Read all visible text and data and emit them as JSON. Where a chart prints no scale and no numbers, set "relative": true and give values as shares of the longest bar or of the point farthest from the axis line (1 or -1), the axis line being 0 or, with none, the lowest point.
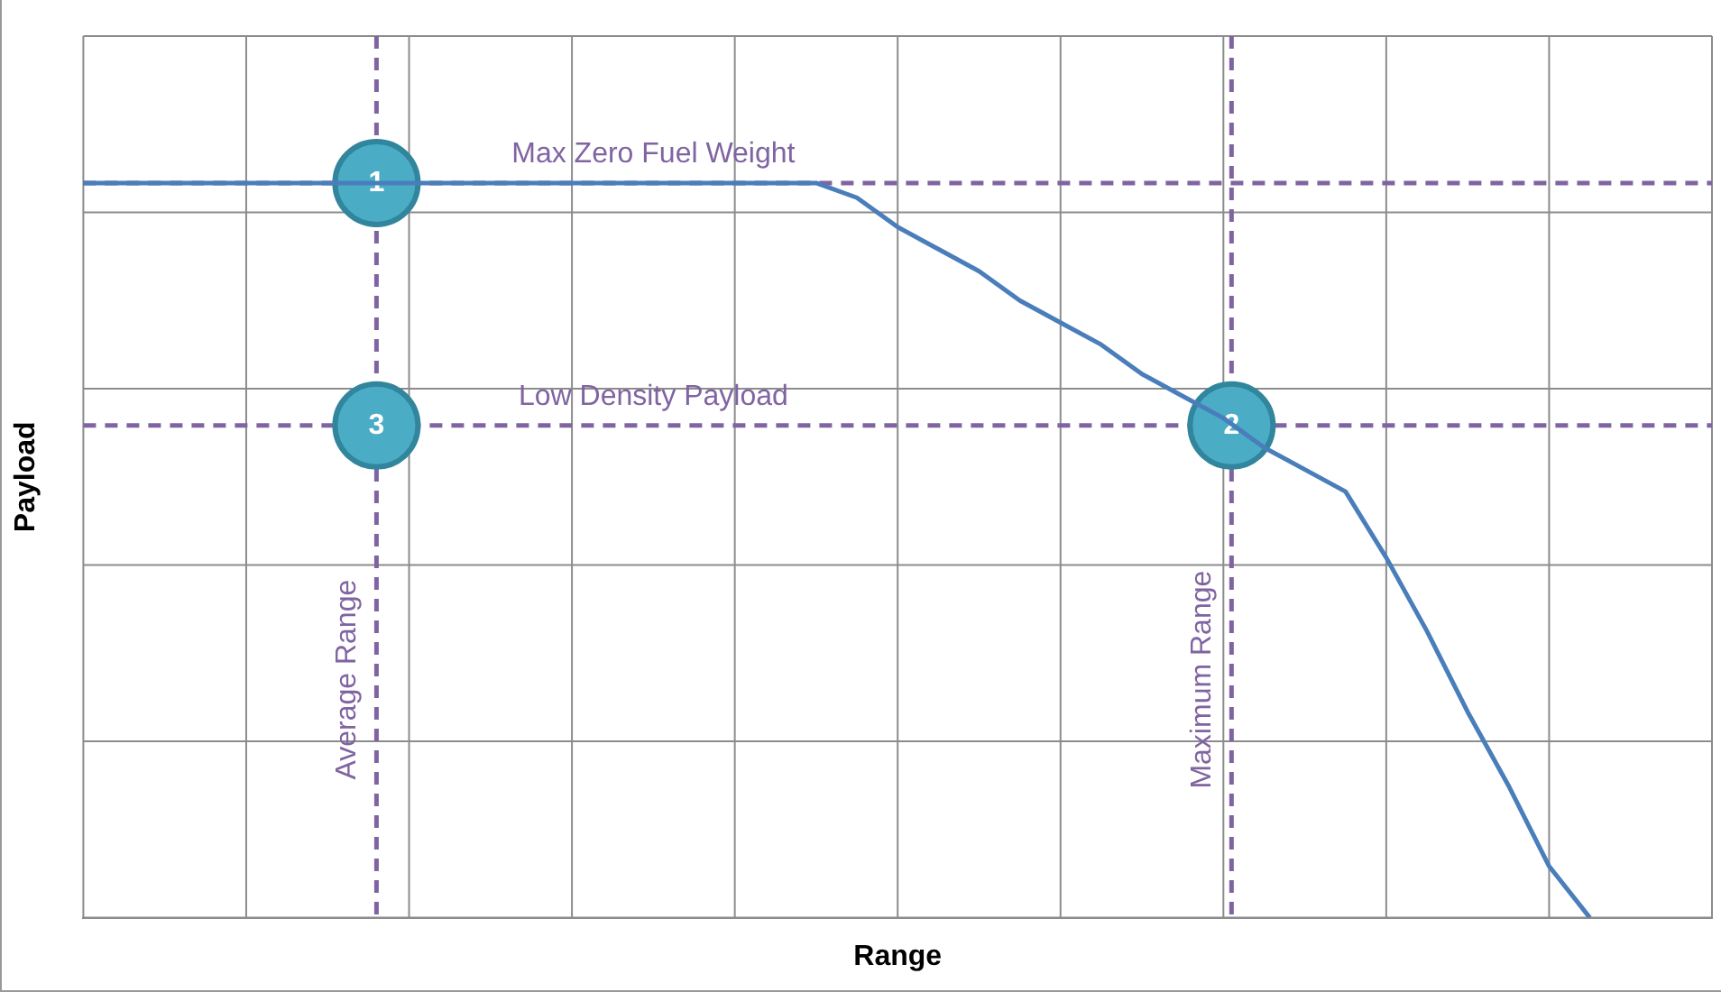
{
  "chart_data": {
    "type": "line",
    "relative": true,
    "xlabel": "Range",
    "ylabel": "Payload",
    "categories": [
      null,
      null,
      null,
      null,
      null,
      null,
      null,
      null,
      null,
      null,
      null,
      null,
      null,
      null,
      null,
      null,
      null,
      null,
      null,
      null,
      null,
      null,
      null,
      null,
      null,
      null,
      null,
      null,
      null,
      null,
      null,
      null,
      null,
      null,
      null,
      null,
      null,
      null,
      null,
      null,
      null
    ],
    "series": [
      {
        "color": "#4a7ebb",
        "values": [
          1,
          1,
          1,
          1,
          1,
          1,
          1,
          1,
          1,
          1,
          1,
          1,
          1,
          1,
          1,
          1,
          1,
          1,
          1,
          0.98,
          0.94,
          0.91,
          0.88,
          0.84,
          0.81,
          0.78,
          0.74,
          0.71,
          0.68,
          0.64,
          0.61,
          0.58,
          0.49,
          0.39,
          0.28,
          0.18,
          0.07,
          0,
          null,
          null,
          null
        ]
      }
    ],
    "ref_lines": [
      {
        "axis": "y",
        "value": 1,
        "label": "Max Zero Fuel Weight",
        "color": "#8064a2",
        "line_style": "dashed"
      },
      {
        "axis": "y",
        "value": 0.67,
        "label": "Low Density Payload",
        "color": "#8064a2",
        "line_style": "dashed"
      },
      {
        "axis": "x",
        "label": "Average Range",
        "color": "#8064a2",
        "line_style": "dashed"
      },
      {
        "axis": "x",
        "label": "Maximum Range",
        "color": "#8064a2",
        "line_style": "dashed"
      }
    ],
    "annotations": [
      {
        "text": "1",
        "y": 1
      },
      {
        "text": "3",
        "y": 0.67
      },
      {
        "text": "2",
        "y": 0.67
      }
    ],
    "grid": true,
    "legend": false,
    "marker": "none",
    "line_style": "solid"
  }
}
